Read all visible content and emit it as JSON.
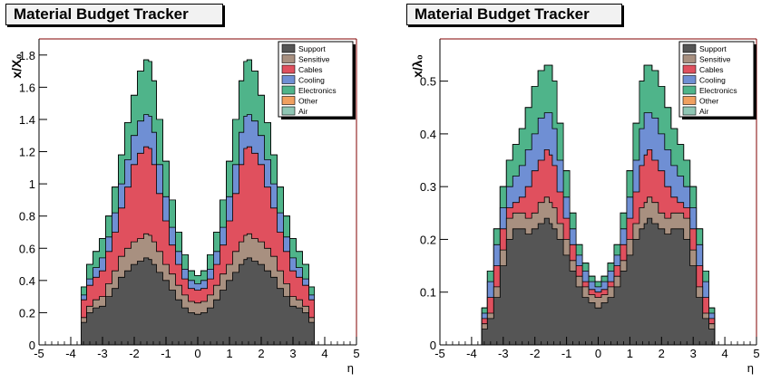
{
  "colors": {
    "Support": "#555555",
    "Sensitive": "#a89080",
    "Cables": "#e0505e",
    "Cooling": "#6f8fd4",
    "Electronics": "#4fb48a",
    "Other": "#f0a060",
    "Air": "#8fc6b4"
  },
  "chart_data": [
    {
      "type": "area",
      "title": "Material Budget Tracker",
      "xlabel": "η",
      "ylabel": "x/X₀",
      "xlim": [
        -5,
        5
      ],
      "ylim": [
        0,
        1.9
      ],
      "x_ticks": [
        "-5",
        "-4",
        "-3",
        "-2",
        "-1",
        "0",
        "1",
        "2",
        "3",
        "4",
        "5"
      ],
      "y_ticks": [
        "0",
        "0.2",
        "0.4",
        "0.6",
        "0.8",
        "1",
        "1.2",
        "1.4",
        "1.6",
        "1.8"
      ],
      "legend": [
        "Support",
        "Sensitive",
        "Cables",
        "Cooling",
        "Electronics",
        "Other",
        "Air"
      ],
      "legend_position": "top-right",
      "stacking": "cumulative",
      "x": [
        -3.75,
        -3.6,
        -3.4,
        -3.2,
        -3.0,
        -2.8,
        -2.6,
        -2.4,
        -2.2,
        -2.0,
        -1.8,
        -1.6,
        -1.5,
        -1.4,
        -1.2,
        -1.0,
        -0.8,
        -0.6,
        -0.4,
        -0.2,
        0.0,
        0.2,
        0.4,
        0.6,
        0.8,
        1.0,
        1.2,
        1.4,
        1.5,
        1.6,
        1.8,
        2.0,
        2.2,
        2.4,
        2.6,
        2.8,
        3.0,
        3.2,
        3.4,
        3.6,
        3.75
      ],
      "series": [
        {
          "name": "Support",
          "values": [
            0.0,
            0.14,
            0.2,
            0.23,
            0.24,
            0.3,
            0.35,
            0.42,
            0.46,
            0.5,
            0.52,
            0.54,
            0.53,
            0.5,
            0.45,
            0.4,
            0.34,
            0.28,
            0.23,
            0.2,
            0.19,
            0.2,
            0.23,
            0.28,
            0.34,
            0.4,
            0.45,
            0.5,
            0.53,
            0.54,
            0.52,
            0.5,
            0.46,
            0.42,
            0.35,
            0.3,
            0.24,
            0.23,
            0.2,
            0.14,
            0.0
          ]
        },
        {
          "name": "Sensitive",
          "values": [
            0.0,
            0.17,
            0.24,
            0.28,
            0.3,
            0.38,
            0.46,
            0.55,
            0.6,
            0.64,
            0.66,
            0.69,
            0.68,
            0.64,
            0.58,
            0.5,
            0.44,
            0.37,
            0.31,
            0.27,
            0.26,
            0.27,
            0.31,
            0.37,
            0.44,
            0.5,
            0.58,
            0.64,
            0.68,
            0.69,
            0.66,
            0.64,
            0.6,
            0.55,
            0.46,
            0.38,
            0.3,
            0.28,
            0.24,
            0.17,
            0.0
          ]
        },
        {
          "name": "Cables",
          "values": [
            0.0,
            0.28,
            0.37,
            0.42,
            0.46,
            0.58,
            0.7,
            0.85,
            0.98,
            1.12,
            1.19,
            1.23,
            1.22,
            1.12,
            0.94,
            0.77,
            0.62,
            0.5,
            0.41,
            0.35,
            0.34,
            0.35,
            0.41,
            0.5,
            0.62,
            0.77,
            0.94,
            1.12,
            1.22,
            1.23,
            1.19,
            1.12,
            0.98,
            0.85,
            0.7,
            0.58,
            0.46,
            0.42,
            0.37,
            0.28,
            0.0
          ]
        },
        {
          "name": "Cooling",
          "values": [
            0.0,
            0.31,
            0.41,
            0.48,
            0.54,
            0.67,
            0.82,
            1.0,
            1.15,
            1.3,
            1.39,
            1.43,
            1.42,
            1.32,
            1.12,
            0.92,
            0.73,
            0.58,
            0.47,
            0.4,
            0.38,
            0.4,
            0.47,
            0.58,
            0.73,
            0.92,
            1.12,
            1.32,
            1.42,
            1.43,
            1.39,
            1.3,
            1.15,
            1.0,
            0.82,
            0.67,
            0.54,
            0.48,
            0.41,
            0.31,
            0.0
          ]
        },
        {
          "name": "Electronics",
          "values": [
            0.0,
            0.36,
            0.5,
            0.58,
            0.66,
            0.8,
            0.98,
            1.18,
            1.38,
            1.55,
            1.7,
            1.77,
            1.76,
            1.64,
            1.4,
            1.14,
            0.9,
            0.7,
            0.56,
            0.46,
            0.43,
            0.46,
            0.56,
            0.7,
            0.9,
            1.14,
            1.4,
            1.64,
            1.76,
            1.77,
            1.7,
            1.55,
            1.38,
            1.18,
            0.98,
            0.8,
            0.66,
            0.58,
            0.5,
            0.36,
            0.0
          ]
        },
        {
          "name": "Other",
          "values": [
            0.0,
            0.36,
            0.5,
            0.58,
            0.66,
            0.8,
            0.98,
            1.18,
            1.38,
            1.55,
            1.7,
            1.77,
            1.76,
            1.64,
            1.4,
            1.14,
            0.9,
            0.7,
            0.56,
            0.46,
            0.43,
            0.46,
            0.56,
            0.7,
            0.9,
            1.14,
            1.4,
            1.64,
            1.76,
            1.77,
            1.7,
            1.55,
            1.38,
            1.18,
            0.98,
            0.8,
            0.66,
            0.58,
            0.5,
            0.36,
            0.0
          ]
        },
        {
          "name": "Air",
          "values": [
            0.0,
            0.36,
            0.5,
            0.58,
            0.66,
            0.8,
            0.98,
            1.18,
            1.38,
            1.55,
            1.7,
            1.77,
            1.76,
            1.64,
            1.4,
            1.14,
            0.9,
            0.7,
            0.56,
            0.46,
            0.43,
            0.46,
            0.56,
            0.7,
            0.9,
            1.14,
            1.4,
            1.64,
            1.76,
            1.77,
            1.7,
            1.55,
            1.38,
            1.18,
            0.98,
            0.8,
            0.66,
            0.58,
            0.5,
            0.36,
            0.0
          ]
        }
      ]
    },
    {
      "type": "area",
      "title": "Material Budget Tracker",
      "xlabel": "η",
      "ylabel": "x/λ₀",
      "xlim": [
        -5,
        5
      ],
      "ylim": [
        0,
        0.58
      ],
      "x_ticks": [
        "-5",
        "-4",
        "-3",
        "-2",
        "-1",
        "0",
        "1",
        "2",
        "3",
        "4",
        "5"
      ],
      "y_ticks": [
        "0",
        "0.1",
        "0.2",
        "0.3",
        "0.4",
        "0.5"
      ],
      "legend": [
        "Support",
        "Sensitive",
        "Cables",
        "Cooling",
        "Electronics",
        "Other",
        "Air"
      ],
      "legend_position": "top-right",
      "stacking": "cumulative",
      "x": [
        -3.75,
        -3.6,
        -3.4,
        -3.2,
        -3.0,
        -2.8,
        -2.6,
        -2.4,
        -2.2,
        -2.0,
        -1.8,
        -1.6,
        -1.5,
        -1.4,
        -1.2,
        -1.0,
        -0.8,
        -0.6,
        -0.4,
        -0.2,
        0.0,
        0.2,
        0.4,
        0.6,
        0.8,
        1.0,
        1.2,
        1.4,
        1.5,
        1.6,
        1.8,
        2.0,
        2.2,
        2.4,
        2.6,
        2.8,
        3.0,
        3.2,
        3.4,
        3.6,
        3.75
      ],
      "series": [
        {
          "name": "Support",
          "values": [
            0.0,
            0.03,
            0.05,
            0.09,
            0.15,
            0.2,
            0.22,
            0.22,
            0.21,
            0.22,
            0.23,
            0.24,
            0.23,
            0.22,
            0.2,
            0.17,
            0.14,
            0.11,
            0.09,
            0.08,
            0.07,
            0.08,
            0.09,
            0.11,
            0.14,
            0.17,
            0.2,
            0.22,
            0.23,
            0.24,
            0.23,
            0.22,
            0.21,
            0.22,
            0.22,
            0.2,
            0.15,
            0.09,
            0.05,
            0.03,
            0.0
          ]
        },
        {
          "name": "Sensitive",
          "values": [
            0.0,
            0.04,
            0.06,
            0.11,
            0.18,
            0.24,
            0.25,
            0.25,
            0.24,
            0.25,
            0.27,
            0.28,
            0.27,
            0.26,
            0.23,
            0.2,
            0.16,
            0.13,
            0.11,
            0.095,
            0.09,
            0.095,
            0.11,
            0.13,
            0.16,
            0.2,
            0.23,
            0.26,
            0.27,
            0.28,
            0.27,
            0.25,
            0.24,
            0.25,
            0.25,
            0.24,
            0.18,
            0.11,
            0.06,
            0.04,
            0.0
          ]
        },
        {
          "name": "Cables",
          "values": [
            0.0,
            0.05,
            0.09,
            0.15,
            0.22,
            0.26,
            0.27,
            0.28,
            0.3,
            0.33,
            0.35,
            0.37,
            0.36,
            0.34,
            0.29,
            0.24,
            0.19,
            0.15,
            0.12,
            0.105,
            0.1,
            0.105,
            0.12,
            0.15,
            0.19,
            0.24,
            0.29,
            0.34,
            0.36,
            0.37,
            0.35,
            0.33,
            0.3,
            0.28,
            0.27,
            0.26,
            0.22,
            0.15,
            0.09,
            0.05,
            0.0
          ]
        },
        {
          "name": "Cooling",
          "values": [
            0.0,
            0.06,
            0.12,
            0.19,
            0.26,
            0.3,
            0.32,
            0.34,
            0.37,
            0.4,
            0.43,
            0.44,
            0.44,
            0.41,
            0.35,
            0.28,
            0.22,
            0.17,
            0.14,
            0.12,
            0.11,
            0.12,
            0.14,
            0.17,
            0.22,
            0.28,
            0.35,
            0.41,
            0.44,
            0.44,
            0.43,
            0.4,
            0.37,
            0.34,
            0.32,
            0.3,
            0.26,
            0.19,
            0.12,
            0.06,
            0.0
          ]
        },
        {
          "name": "Electronics",
          "values": [
            0.0,
            0.07,
            0.14,
            0.22,
            0.3,
            0.35,
            0.38,
            0.41,
            0.45,
            0.49,
            0.52,
            0.53,
            0.53,
            0.5,
            0.42,
            0.33,
            0.25,
            0.19,
            0.155,
            0.13,
            0.12,
            0.13,
            0.155,
            0.19,
            0.25,
            0.33,
            0.42,
            0.5,
            0.53,
            0.53,
            0.52,
            0.49,
            0.45,
            0.41,
            0.38,
            0.35,
            0.3,
            0.22,
            0.14,
            0.07,
            0.0
          ]
        },
        {
          "name": "Other",
          "values": [
            0.0,
            0.07,
            0.14,
            0.22,
            0.3,
            0.35,
            0.38,
            0.41,
            0.45,
            0.49,
            0.52,
            0.53,
            0.53,
            0.5,
            0.42,
            0.33,
            0.25,
            0.19,
            0.155,
            0.13,
            0.12,
            0.13,
            0.155,
            0.19,
            0.25,
            0.33,
            0.42,
            0.5,
            0.53,
            0.53,
            0.52,
            0.49,
            0.45,
            0.41,
            0.38,
            0.35,
            0.3,
            0.22,
            0.14,
            0.07,
            0.0
          ]
        },
        {
          "name": "Air",
          "values": [
            0.0,
            0.07,
            0.14,
            0.22,
            0.3,
            0.35,
            0.38,
            0.41,
            0.45,
            0.49,
            0.52,
            0.53,
            0.53,
            0.5,
            0.42,
            0.33,
            0.25,
            0.19,
            0.155,
            0.13,
            0.12,
            0.13,
            0.155,
            0.19,
            0.25,
            0.33,
            0.42,
            0.5,
            0.53,
            0.53,
            0.52,
            0.49,
            0.45,
            0.41,
            0.38,
            0.35,
            0.3,
            0.22,
            0.14,
            0.07,
            0.0
          ]
        }
      ]
    }
  ]
}
